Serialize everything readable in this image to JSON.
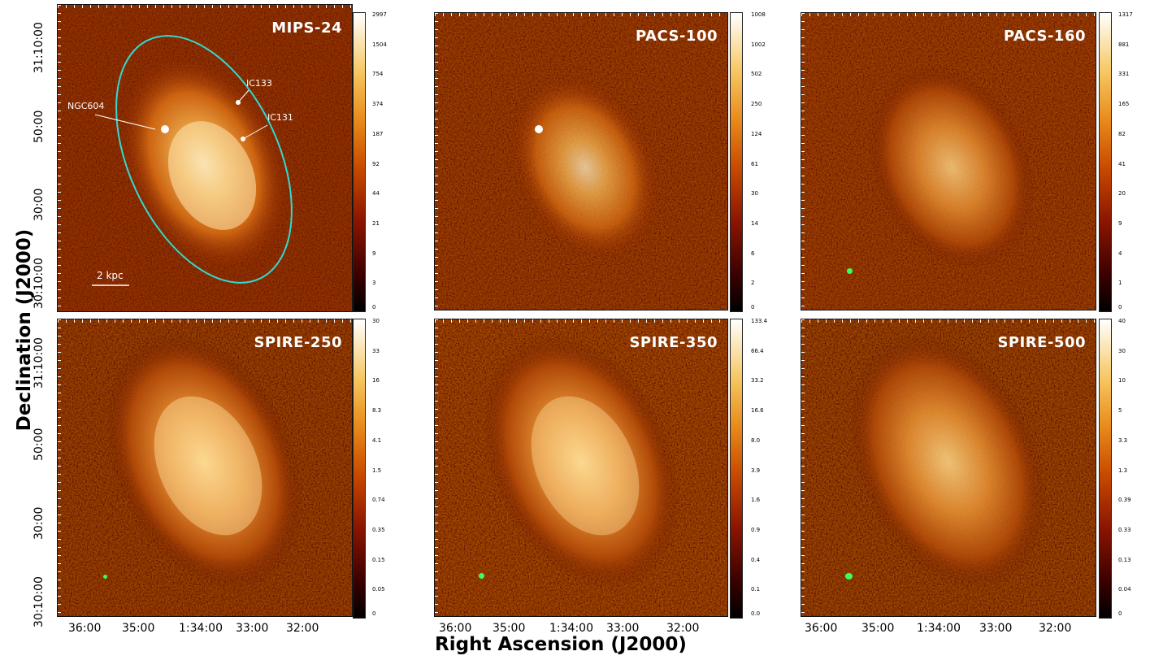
{
  "axes": {
    "ylabel": "Declination (J2000)",
    "xlabel": "Right Ascension (J2000)",
    "dec_ticks_top": [
      "31:10:00",
      "50:00",
      "30:00",
      "30:10:00"
    ],
    "dec_ticks_bottom": [
      "31:10:00",
      "50:00",
      "30:00",
      "30:10:00"
    ],
    "ra_ticks": [
      "36:00",
      "35:00",
      "1:34:00",
      "33:00",
      "32:00"
    ]
  },
  "colors": {
    "ellipse": "#35d8d0",
    "beam": "#3bff5a"
  },
  "panels": [
    {
      "label": "MIPS-24",
      "colorbar": [
        "2997",
        "1504",
        "754",
        "374",
        "187",
        "92",
        "44",
        "21",
        "9",
        "3",
        "0"
      ],
      "annotations": {
        "ngc": "NGC604",
        "ic133": "IC133",
        "ic131": "IC131",
        "scale": "2 kpc"
      }
    },
    {
      "label": "PACS-100",
      "colorbar": [
        "1008",
        "1002",
        "502",
        "250",
        "124",
        "61",
        "30",
        "14",
        "6",
        "2",
        "0"
      ]
    },
    {
      "label": "PACS-160",
      "colorbar": [
        "1317",
        "881",
        "331",
        "165",
        "82",
        "41",
        "20",
        "9",
        "4",
        "1",
        "0"
      ]
    },
    {
      "label": "SPIRE-250",
      "colorbar": [
        "30",
        "33",
        "16",
        "8.3",
        "4.1",
        "1.5",
        "0.74",
        "0.35",
        "0.15",
        "0.05",
        "0"
      ]
    },
    {
      "label": "SPIRE-350",
      "colorbar": [
        "133.4",
        "66.4",
        "33.2",
        "16.6",
        "8.0",
        "3.9",
        "1.6",
        "0.9",
        "0.4",
        "0.1",
        "0.0"
      ]
    },
    {
      "label": "SPIRE-500",
      "colorbar": [
        "40",
        "30",
        "10",
        "5",
        "3.3",
        "1.3",
        "0.39",
        "0.33",
        "0.13",
        "0.04",
        "0"
      ]
    }
  ]
}
